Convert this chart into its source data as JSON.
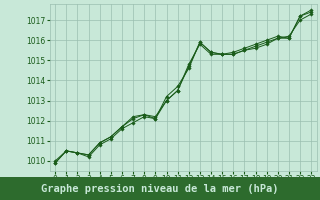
{
  "title": "Graphe pression niveau de la mer (hPa)",
  "background_color": "#c8e8d8",
  "plot_background": "#c8e8d8",
  "grid_color": "#9bbfb0",
  "line_color": "#1a5c1a",
  "marker_color": "#1a5c1a",
  "bottom_bar_color": "#2d6b2d",
  "title_color": "#c8e8d8",
  "ylim": [
    1009.5,
    1017.8
  ],
  "xlim": [
    -0.5,
    23.5
  ],
  "yticks": [
    1010,
    1011,
    1012,
    1013,
    1014,
    1015,
    1016,
    1017
  ],
  "xticks": [
    0,
    1,
    2,
    3,
    4,
    5,
    6,
    7,
    8,
    9,
    10,
    11,
    12,
    13,
    14,
    15,
    16,
    17,
    18,
    19,
    20,
    21,
    22,
    23
  ],
  "series1": [
    1010.0,
    1010.5,
    1010.4,
    1010.2,
    1010.8,
    1011.1,
    1011.6,
    1011.9,
    1012.2,
    1012.1,
    1013.2,
    1013.7,
    1014.6,
    1015.9,
    1015.4,
    1015.3,
    1015.3,
    1015.5,
    1015.6,
    1015.8,
    1016.1,
    1016.1,
    1017.2,
    1017.5
  ],
  "series2": [
    1009.9,
    1010.5,
    1010.4,
    1010.3,
    1010.9,
    1011.2,
    1011.7,
    1012.1,
    1012.3,
    1012.1,
    1013.0,
    1013.5,
    1014.7,
    1015.9,
    1015.4,
    1015.3,
    1015.3,
    1015.5,
    1015.7,
    1015.9,
    1016.1,
    1016.2,
    1017.0,
    1017.3
  ],
  "series3": [
    1009.9,
    1010.5,
    1010.4,
    1010.3,
    1010.9,
    1011.2,
    1011.7,
    1012.2,
    1012.3,
    1012.2,
    1013.0,
    1013.5,
    1014.8,
    1015.8,
    1015.3,
    1015.3,
    1015.4,
    1015.6,
    1015.8,
    1016.0,
    1016.2,
    1016.1,
    1017.2,
    1017.4
  ],
  "tick_fontsize": 5.5,
  "title_fontsize": 7.5
}
